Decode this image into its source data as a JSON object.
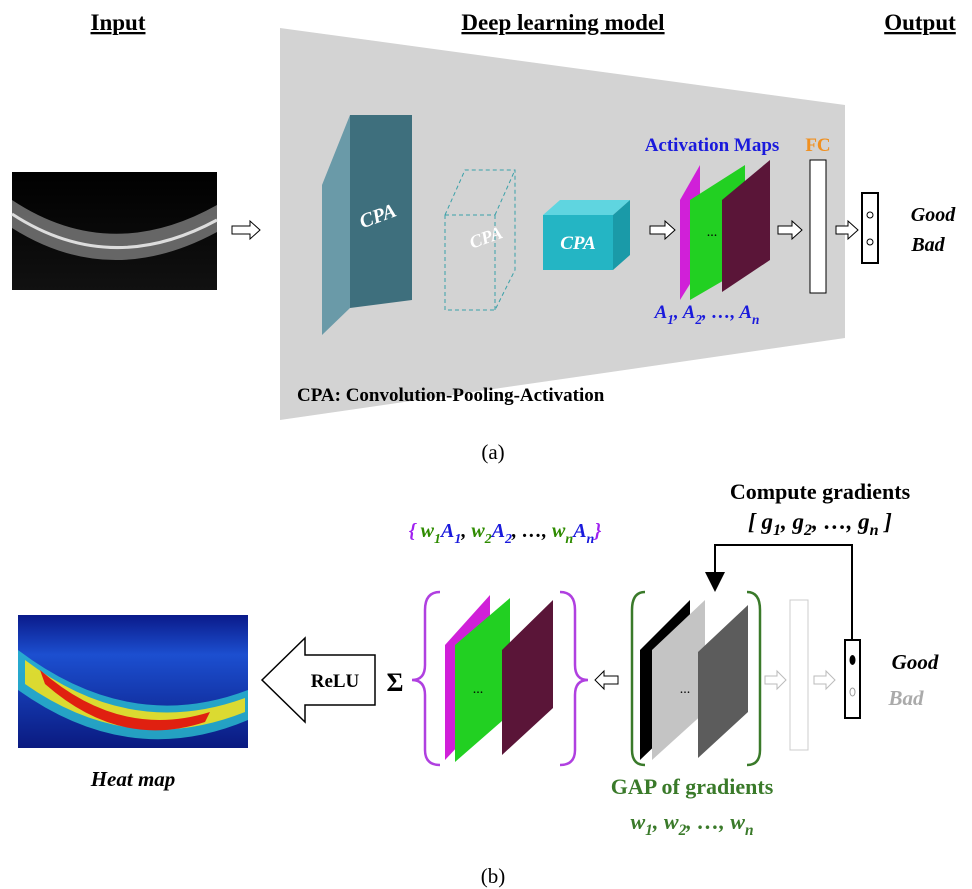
{
  "panel_a": {
    "headers": [
      "Input",
      "Deep learning model",
      "Output"
    ],
    "cpa_blocks": [
      "CPA",
      "CPA",
      "CPA"
    ],
    "activation_maps_label": "Activation Maps",
    "fc_label": "FC",
    "maps_ellipsis": "...",
    "activation_list": [
      {
        "text": "A",
        "sub": "1"
      },
      {
        "text": ", "
      },
      {
        "text": "A",
        "sub": "2"
      },
      {
        "text": ", …, "
      },
      {
        "text": "A",
        "sub": "n"
      }
    ],
    "outputs": [
      "Good",
      "Bad"
    ],
    "note": "CPA: Convolution-Pooling-Activation",
    "caption": "(a)"
  },
  "panel_b": {
    "compute_title": "Compute gradients",
    "gradient_list": [
      {
        "text": "[ "
      },
      {
        "text": "g",
        "sub": "1"
      },
      {
        "text": ", "
      },
      {
        "text": "g",
        "sub": "2"
      },
      {
        "text": ", …, "
      },
      {
        "text": "g",
        "sub": "n"
      },
      {
        "text": " ]"
      }
    ],
    "weighted_list": [
      {
        "text": "{ ",
        "color": "#a020f0"
      },
      {
        "text": "w",
        "sub": "1",
        "color": "#2e8b00"
      },
      {
        "text": "A",
        "sub": "1",
        "color": "#1a1adc"
      },
      {
        "text": ", "
      },
      {
        "text": "w",
        "sub": "2",
        "color": "#2e8b00"
      },
      {
        "text": "A",
        "sub": "2",
        "color": "#1a1adc"
      },
      {
        "text": ", …, "
      },
      {
        "text": "w",
        "sub": "n",
        "color": "#2e8b00"
      },
      {
        "text": "A",
        "sub": "n",
        "color": "#1a1adc"
      },
      {
        "text": "}",
        "color": "#a020f0"
      }
    ],
    "relu": "ReLU",
    "sum": "Σ",
    "maps_ellipsis": "...",
    "gradient_maps_ellipsis": "...",
    "outputs": [
      "Good",
      "Bad"
    ],
    "gap_title": "GAP of gradients",
    "gap_list": [
      {
        "text": "w",
        "sub": "1"
      },
      {
        "text": ", "
      },
      {
        "text": "w",
        "sub": "2"
      },
      {
        "text": ", …, "
      },
      {
        "text": "w",
        "sub": "n"
      }
    ],
    "heat_map_label": "Heat map",
    "caption": "(b)"
  }
}
